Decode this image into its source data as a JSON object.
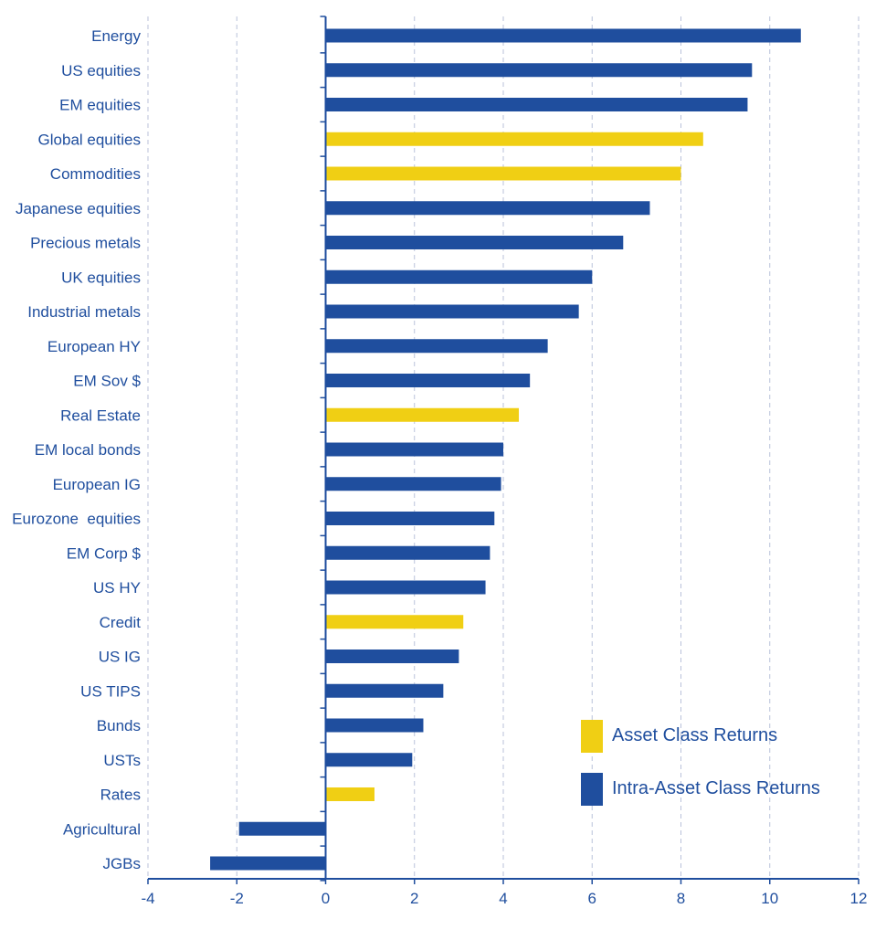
{
  "colors": {
    "asset": "#f0cf14",
    "intra": "#1f4e9e",
    "text": "#1f4e9e",
    "grid": "#b9c2da",
    "axis": "#1f4e9e"
  },
  "chart_data": {
    "type": "bar",
    "orientation": "horizontal",
    "xlim": [
      -4,
      12
    ],
    "xticks": [
      -4,
      -2,
      0,
      2,
      4,
      6,
      8,
      10,
      12
    ],
    "grid": "vertical dashed",
    "legend_position": "bottom-right",
    "series": [
      {
        "name": "Asset Class Returns",
        "color_key": "asset"
      },
      {
        "name": "Intra-Asset Class Returns",
        "color_key": "intra"
      }
    ],
    "bars": [
      {
        "label": "Energy",
        "value": 10.7,
        "series": "Intra-Asset Class Returns"
      },
      {
        "label": "US equities",
        "value": 9.6,
        "series": "Intra-Asset Class Returns"
      },
      {
        "label": "EM equities",
        "value": 9.5,
        "series": "Intra-Asset Class Returns"
      },
      {
        "label": "Global equities",
        "value": 8.5,
        "series": "Asset Class Returns"
      },
      {
        "label": "Commodities",
        "value": 8.0,
        "series": "Asset Class Returns"
      },
      {
        "label": "Japanese equities",
        "value": 7.3,
        "series": "Intra-Asset Class Returns"
      },
      {
        "label": "Precious metals",
        "value": 6.7,
        "series": "Intra-Asset Class Returns"
      },
      {
        "label": "UK equities",
        "value": 6.0,
        "series": "Intra-Asset Class Returns"
      },
      {
        "label": "Industrial metals",
        "value": 5.7,
        "series": "Intra-Asset Class Returns"
      },
      {
        "label": "European HY",
        "value": 5.0,
        "series": "Intra-Asset Class Returns"
      },
      {
        "label": "EM Sov $",
        "value": 4.6,
        "series": "Intra-Asset Class Returns"
      },
      {
        "label": "Real Estate",
        "value": 4.35,
        "series": "Asset Class Returns"
      },
      {
        "label": "EM local bonds",
        "value": 4.0,
        "series": "Intra-Asset Class Returns"
      },
      {
        "label": "European IG",
        "value": 3.95,
        "series": "Intra-Asset Class Returns"
      },
      {
        "label": "Eurozone  equities",
        "value": 3.8,
        "series": "Intra-Asset Class Returns"
      },
      {
        "label": "EM Corp $",
        "value": 3.7,
        "series": "Intra-Asset Class Returns"
      },
      {
        "label": "US HY",
        "value": 3.6,
        "series": "Intra-Asset Class Returns"
      },
      {
        "label": "Credit",
        "value": 3.1,
        "series": "Asset Class Returns"
      },
      {
        "label": "US IG",
        "value": 3.0,
        "series": "Intra-Asset Class Returns"
      },
      {
        "label": "US TIPS",
        "value": 2.65,
        "series": "Intra-Asset Class Returns"
      },
      {
        "label": "Bunds",
        "value": 2.2,
        "series": "Intra-Asset Class Returns"
      },
      {
        "label": "USTs",
        "value": 1.95,
        "series": "Intra-Asset Class Returns"
      },
      {
        "label": "Rates",
        "value": 1.1,
        "series": "Asset Class Returns"
      },
      {
        "label": "Agricultural",
        "value": -1.95,
        "series": "Intra-Asset Class Returns"
      },
      {
        "label": "JGBs",
        "value": -2.6,
        "series": "Intra-Asset Class Returns"
      }
    ]
  }
}
